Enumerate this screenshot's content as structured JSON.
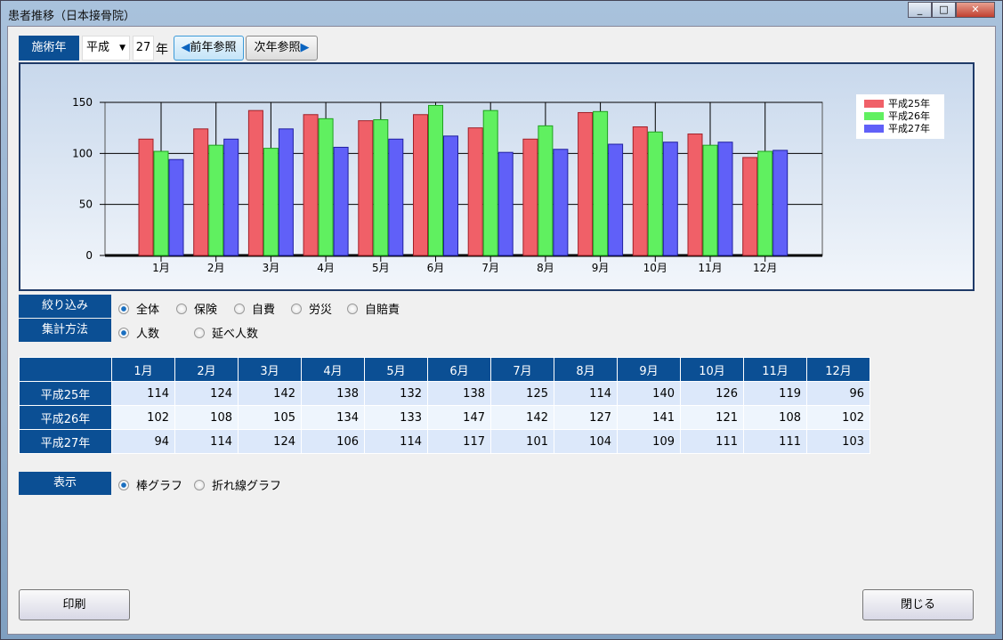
{
  "window": {
    "title": "患者推移（日本接骨院）"
  },
  "toolbar": {
    "year_label": "施術年",
    "era": "平成",
    "year": "27",
    "year_unit": "年",
    "prev": "前年参照",
    "next": "次年参照"
  },
  "filter": {
    "label": "絞り込み",
    "options": [
      "全体",
      "保険",
      "自費",
      "労災",
      "自賠責"
    ],
    "selected": 0
  },
  "method": {
    "label": "集計方法",
    "options": [
      "人数",
      "延べ人数"
    ],
    "selected": 0
  },
  "display": {
    "label": "表示",
    "options": [
      "棒グラフ",
      "折れ線グラフ"
    ],
    "selected": 0
  },
  "buttons": {
    "print": "印刷",
    "close": "閉じる"
  },
  "colors": {
    "s0": "#f06068",
    "s1": "#60f060",
    "s2": "#6060f8"
  },
  "chart_data": {
    "type": "bar",
    "categories": [
      "1月",
      "2月",
      "3月",
      "4月",
      "5月",
      "6月",
      "7月",
      "8月",
      "9月",
      "10月",
      "11月",
      "12月"
    ],
    "series": [
      {
        "name": "平成25年",
        "values": [
          114,
          124,
          142,
          138,
          132,
          138,
          125,
          114,
          140,
          126,
          119,
          96
        ]
      },
      {
        "name": "平成26年",
        "values": [
          102,
          108,
          105,
          134,
          133,
          147,
          142,
          127,
          141,
          121,
          108,
          102
        ]
      },
      {
        "name": "平成27年",
        "values": [
          94,
          114,
          124,
          106,
          114,
          117,
          101,
          104,
          109,
          111,
          111,
          103
        ]
      }
    ],
    "yticks": [
      0,
      50,
      100,
      150
    ],
    "ylim": [
      0,
      150
    ],
    "grid": true,
    "legend": "top-right"
  }
}
